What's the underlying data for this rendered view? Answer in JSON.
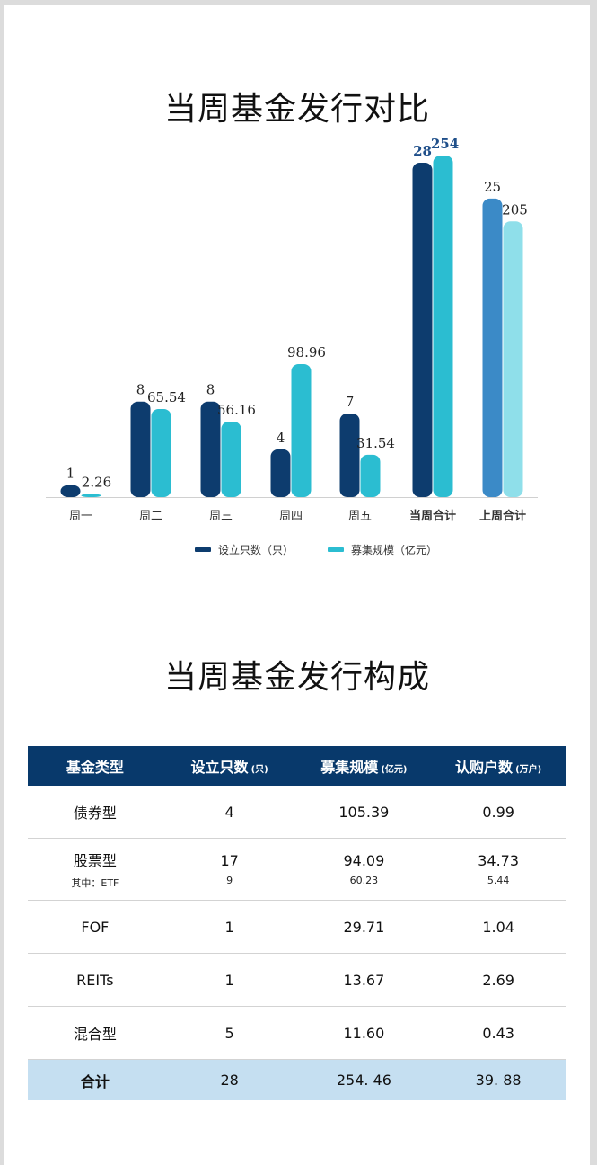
{
  "chart_title": "当周基金发行对比",
  "table_title": "当周基金发行构成",
  "chart_data": {
    "type": "bar",
    "categories": [
      "周一",
      "周二",
      "周三",
      "周四",
      "周五",
      "当周合计",
      "上周合计"
    ],
    "series": [
      {
        "name": "设立只数（只）",
        "values": [
          1,
          8,
          8,
          4,
          7,
          28,
          25
        ]
      },
      {
        "name": "募集规模（亿元）",
        "values": [
          2.26,
          65.54,
          56.16,
          98.96,
          31.54,
          254,
          205
        ]
      }
    ],
    "value_labels": [
      [
        "1",
        "8",
        "8",
        "4",
        "7",
        "28",
        "25"
      ],
      [
        "2.26",
        "65.54",
        "56.16",
        "98.96",
        "31.54",
        "254",
        "205"
      ]
    ],
    "legend_position": "bottom",
    "grid": false,
    "colors": {
      "series1": "#0d3c6e",
      "series2": "#2bbdd1",
      "total_series1": "#0d3c6e",
      "total_series2": "#2bbdd1",
      "prev_series1": "#3b8ac7",
      "prev_series2": "#8fdfea",
      "total_label": "#1f4f8a"
    }
  },
  "table": {
    "headers": [
      {
        "label": "基金类型",
        "unit": ""
      },
      {
        "label": "设立只数",
        "unit": "(只)"
      },
      {
        "label": "募集规模",
        "unit": "(亿元)"
      },
      {
        "label": "认购户数",
        "unit": "(万户)"
      }
    ],
    "rows": [
      {
        "type": "债券型",
        "count": "4",
        "scale": "105.39",
        "accounts": "0.99"
      },
      {
        "type": "股票型",
        "count": "17",
        "scale": "94.09",
        "accounts": "34.73",
        "sub_type": "其中：ETF",
        "sub_count": "9",
        "sub_scale": "60.23",
        "sub_accounts": "5.44"
      },
      {
        "type": "FOF",
        "count": "1",
        "scale": "29.71",
        "accounts": "1.04"
      },
      {
        "type": "REITs",
        "count": "1",
        "scale": "13.67",
        "accounts": "2.69"
      },
      {
        "type": "混合型",
        "count": "5",
        "scale": "11.60",
        "accounts": "0.43"
      }
    ],
    "total": {
      "type": "合计",
      "count": "28",
      "scale": "254. 46",
      "accounts": "39. 88"
    }
  }
}
